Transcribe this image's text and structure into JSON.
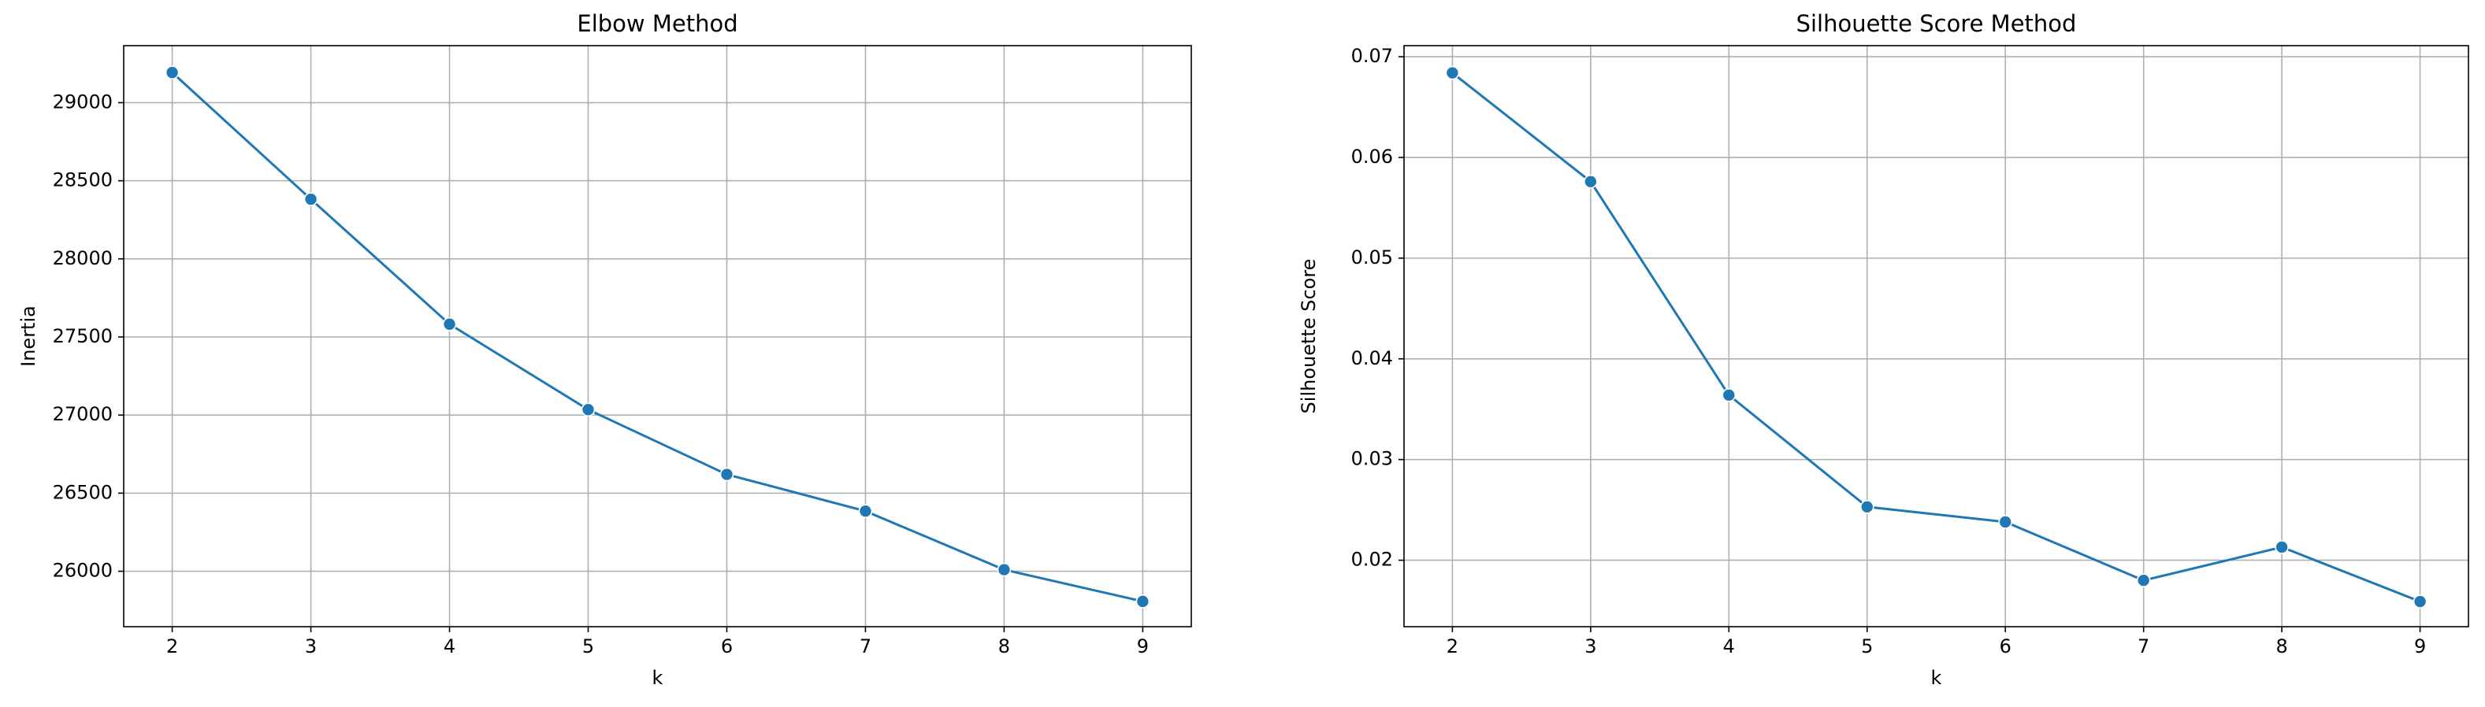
{
  "chart_data": [
    {
      "type": "line",
      "title": "Elbow Method",
      "xlabel": "k",
      "ylabel": "Inertia",
      "x": [
        2,
        3,
        4,
        5,
        6,
        7,
        8,
        9
      ],
      "series": [
        {
          "name": "Inertia",
          "color": "#1f77b4",
          "values": [
            29193,
            28382,
            27582,
            27035,
            26620,
            26385,
            26010,
            25807
          ]
        }
      ],
      "xlim": [
        1.65,
        9.35
      ],
      "xticks": [
        2,
        3,
        4,
        5,
        6,
        7,
        8,
        9
      ],
      "ylim": [
        25645,
        29365
      ],
      "yticks": [
        26000,
        26500,
        27000,
        27500,
        28000,
        28500,
        29000
      ],
      "grid": true
    },
    {
      "type": "line",
      "title": "Silhouette Score Method",
      "xlabel": "k",
      "ylabel": "Silhouette Score",
      "x": [
        2,
        3,
        4,
        5,
        6,
        7,
        8,
        9
      ],
      "series": [
        {
          "name": "Silhouette Score",
          "color": "#1f77b4",
          "values": [
            0.0684,
            0.0576,
            0.0364,
            0.0253,
            0.0238,
            0.018,
            0.0213,
            0.0159
          ]
        }
      ],
      "xlim": [
        1.65,
        9.35
      ],
      "xticks": [
        2,
        3,
        4,
        5,
        6,
        7,
        8,
        9
      ],
      "ylim": [
        0.0134,
        0.0711
      ],
      "yticks": [
        0.02,
        0.03,
        0.04,
        0.05,
        0.06,
        0.07
      ],
      "grid": true
    }
  ]
}
